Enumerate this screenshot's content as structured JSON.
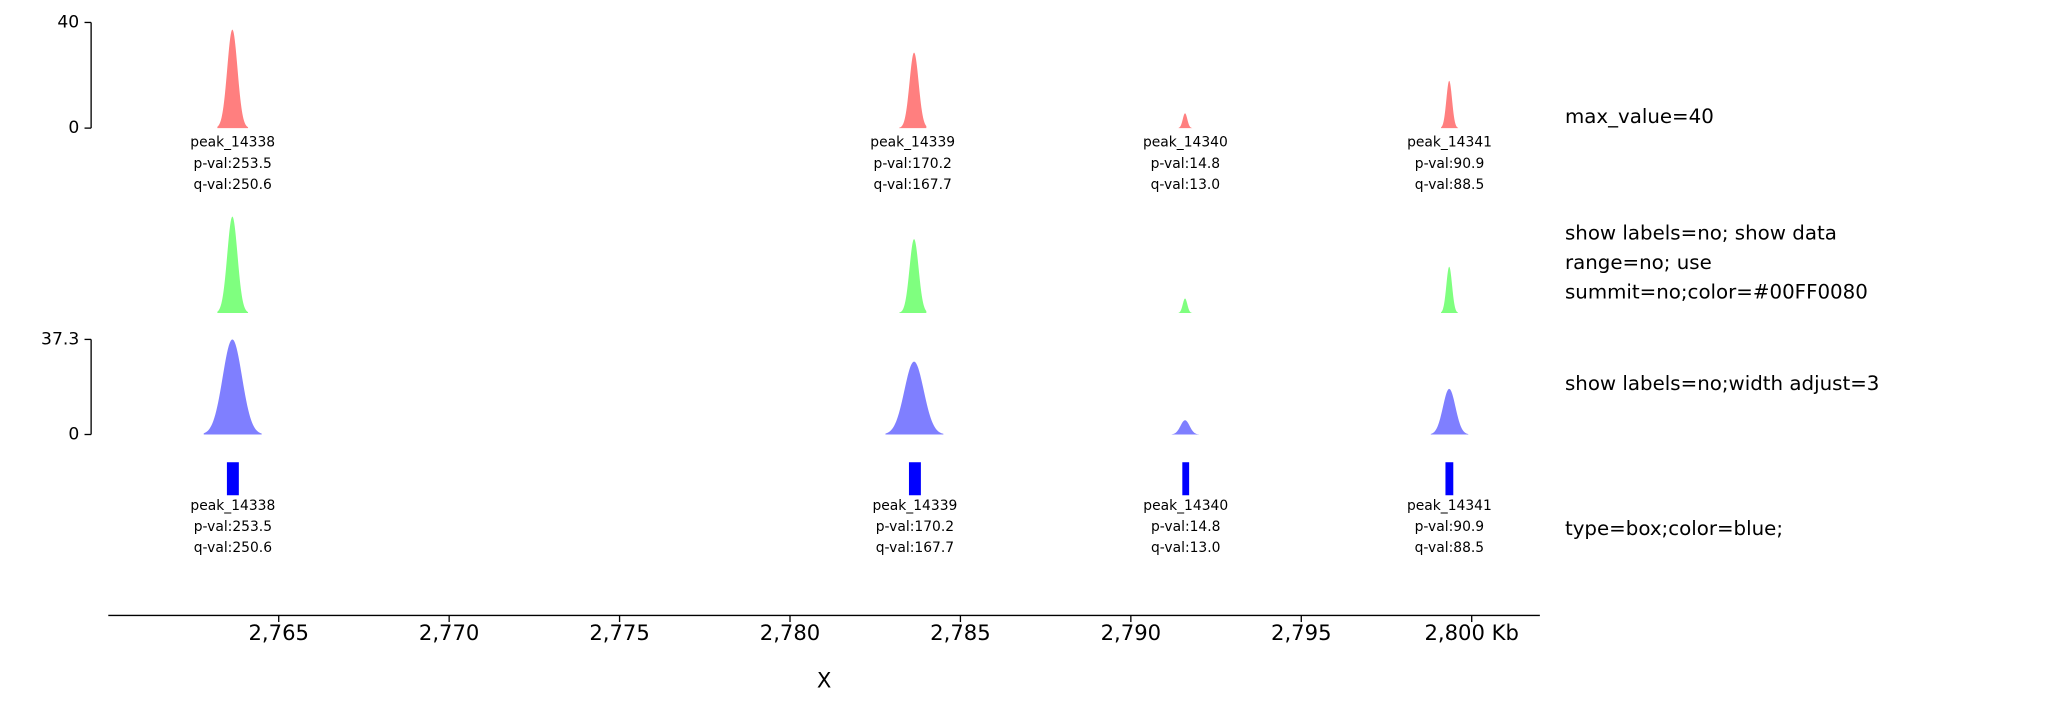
{
  "chart_data": [
    {
      "type": "peak",
      "title": "max_value=40",
      "color": "#FF000080",
      "ylim": [
        0,
        40
      ],
      "yticks": [
        0,
        40
      ],
      "x": [
        2763.64,
        2783.64,
        2791.59,
        2799.34
      ],
      "values": [
        37.3,
        28.6,
        5.6,
        17.9
      ],
      "starts": [
        2763.2,
        2783.2,
        2791.4,
        2799.1
      ],
      "ends": [
        2764.1,
        2784.0,
        2791.8,
        2799.6
      ],
      "names": [
        "peak_14338",
        "peak_14339",
        "peak_14340",
        "peak_14341"
      ],
      "pvals": [
        {
          "value": 253.5,
          "label": "p-val:253.5"
        },
        {
          "value": 170.2,
          "label": "p-val:170.2"
        },
        {
          "value": 14.8,
          "label": "p-val:14.8"
        },
        {
          "value": 90.9,
          "label": "p-val:90.9"
        }
      ],
      "qvals": [
        {
          "value": 250.6,
          "label": "q-val:250.6"
        },
        {
          "value": 167.7,
          "label": "q-val:167.7"
        },
        {
          "value": 13.0,
          "label": "q-val:13.0"
        },
        {
          "value": 88.5,
          "label": "q-val:88.5"
        }
      ]
    },
    {
      "type": "peak",
      "title": [
        "show labels=no; show data",
        "range=no; use",
        "summit=no;color=#00FF0080"
      ],
      "color": "#00FF0080",
      "ylim": [
        0,
        37.3
      ],
      "x": [
        2763.64,
        2783.64,
        2791.59,
        2799.34
      ],
      "values": [
        37.3,
        28.6,
        5.6,
        17.9
      ],
      "starts": [
        2763.2,
        2783.2,
        2791.4,
        2799.1
      ],
      "ends": [
        2764.1,
        2784.0,
        2791.8,
        2799.6
      ]
    },
    {
      "type": "peak",
      "title": "show labels=no;width adjust=3",
      "color": "#0000FF80",
      "ylim": [
        0,
        37.3
      ],
      "yticks": [
        0,
        37.3
      ],
      "x": [
        2763.64,
        2783.64,
        2791.59,
        2799.34
      ],
      "values": [
        37.3,
        28.6,
        5.6,
        17.9
      ],
      "starts": [
        2762.8,
        2782.8,
        2791.2,
        2798.8
      ],
      "ends": [
        2764.5,
        2784.5,
        2792.0,
        2799.9
      ]
    },
    {
      "type": "box",
      "title": "type=box;color=blue;",
      "color": "blue",
      "starts": [
        2763.48,
        2783.49,
        2791.51,
        2799.23
      ],
      "ends": [
        2763.83,
        2783.84,
        2791.71,
        2799.46
      ],
      "names": [
        "peak_14338",
        "peak_14339",
        "peak_14340",
        "peak_14341"
      ],
      "pvals": [
        {
          "value": 253.5,
          "label": "p-val:253.5"
        },
        {
          "value": 170.2,
          "label": "p-val:170.2"
        },
        {
          "value": 14.8,
          "label": "p-val:14.8"
        },
        {
          "value": 90.9,
          "label": "p-val:90.9"
        }
      ],
      "qvals": [
        {
          "value": 250.6,
          "label": "q-val:250.6"
        },
        {
          "value": 167.7,
          "label": "q-val:167.7"
        },
        {
          "value": 13.0,
          "label": "q-val:13.0"
        },
        {
          "value": 88.5,
          "label": "q-val:88.5"
        }
      ]
    },
    {
      "type": "x-axis",
      "xlim": [
        2760,
        2802
      ],
      "xlabel": "X",
      "xticks": [
        {
          "value": 2765,
          "label": "2,765"
        },
        {
          "value": 2770,
          "label": "2,770"
        },
        {
          "value": 2775,
          "label": "2,775"
        },
        {
          "value": 2780,
          "label": "2,780"
        },
        {
          "value": 2785,
          "label": "2,785"
        },
        {
          "value": 2790,
          "label": "2,790"
        },
        {
          "value": 2795,
          "label": "2,795"
        },
        {
          "value": 2800,
          "label": "2,800 Kb"
        }
      ]
    }
  ]
}
